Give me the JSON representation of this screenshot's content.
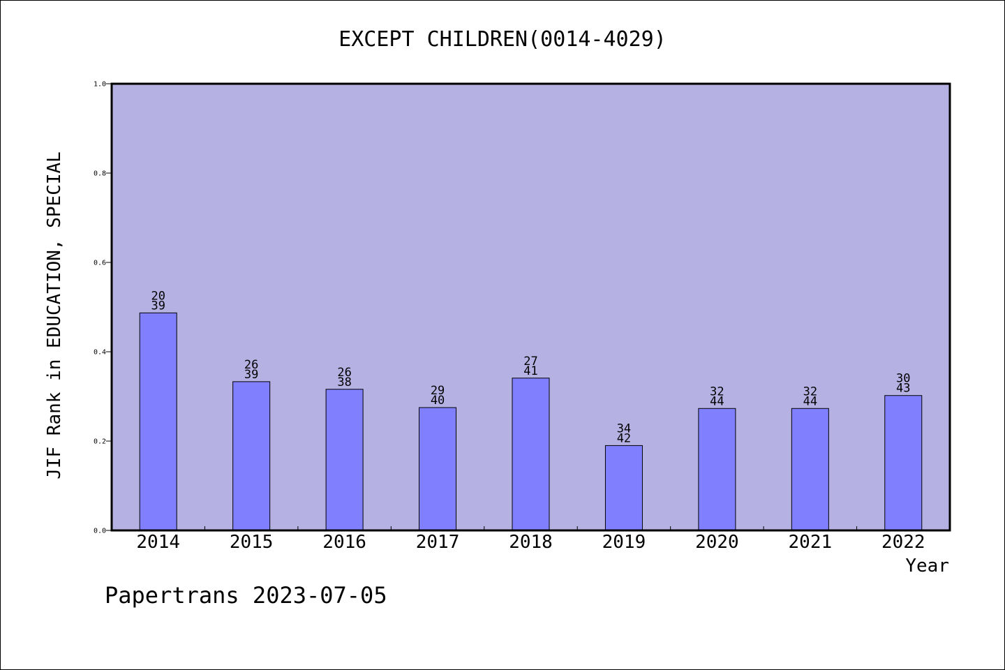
{
  "chart_data": {
    "type": "bar",
    "title": "EXCEPT CHILDREN(0014-4029)",
    "xlabel": "Year",
    "ylabel": "JIF Rank in EDUCATION, SPECIAL",
    "ylim": [
      0,
      1.0
    ],
    "yticks": [
      "0.0",
      "0.2",
      "0.4",
      "0.6",
      "0.8",
      "1.0"
    ],
    "grid": false,
    "categories": [
      "2014",
      "2015",
      "2016",
      "2017",
      "2018",
      "2019",
      "2020",
      "2021",
      "2022"
    ],
    "values": [
      0.487,
      0.333,
      0.316,
      0.275,
      0.341,
      0.19,
      0.273,
      0.273,
      0.302
    ],
    "rank": [
      "20",
      "26",
      "26",
      "29",
      "27",
      "34",
      "32",
      "32",
      "30"
    ],
    "total": [
      "39",
      "39",
      "38",
      "40",
      "41",
      "42",
      "44",
      "44",
      "43"
    ]
  },
  "footer": {
    "text": "Papertrans 2023-07-05"
  },
  "colors": {
    "plot_background": "#b6b1e3",
    "bar_fill": "#8080ff",
    "axis": "#000000"
  }
}
